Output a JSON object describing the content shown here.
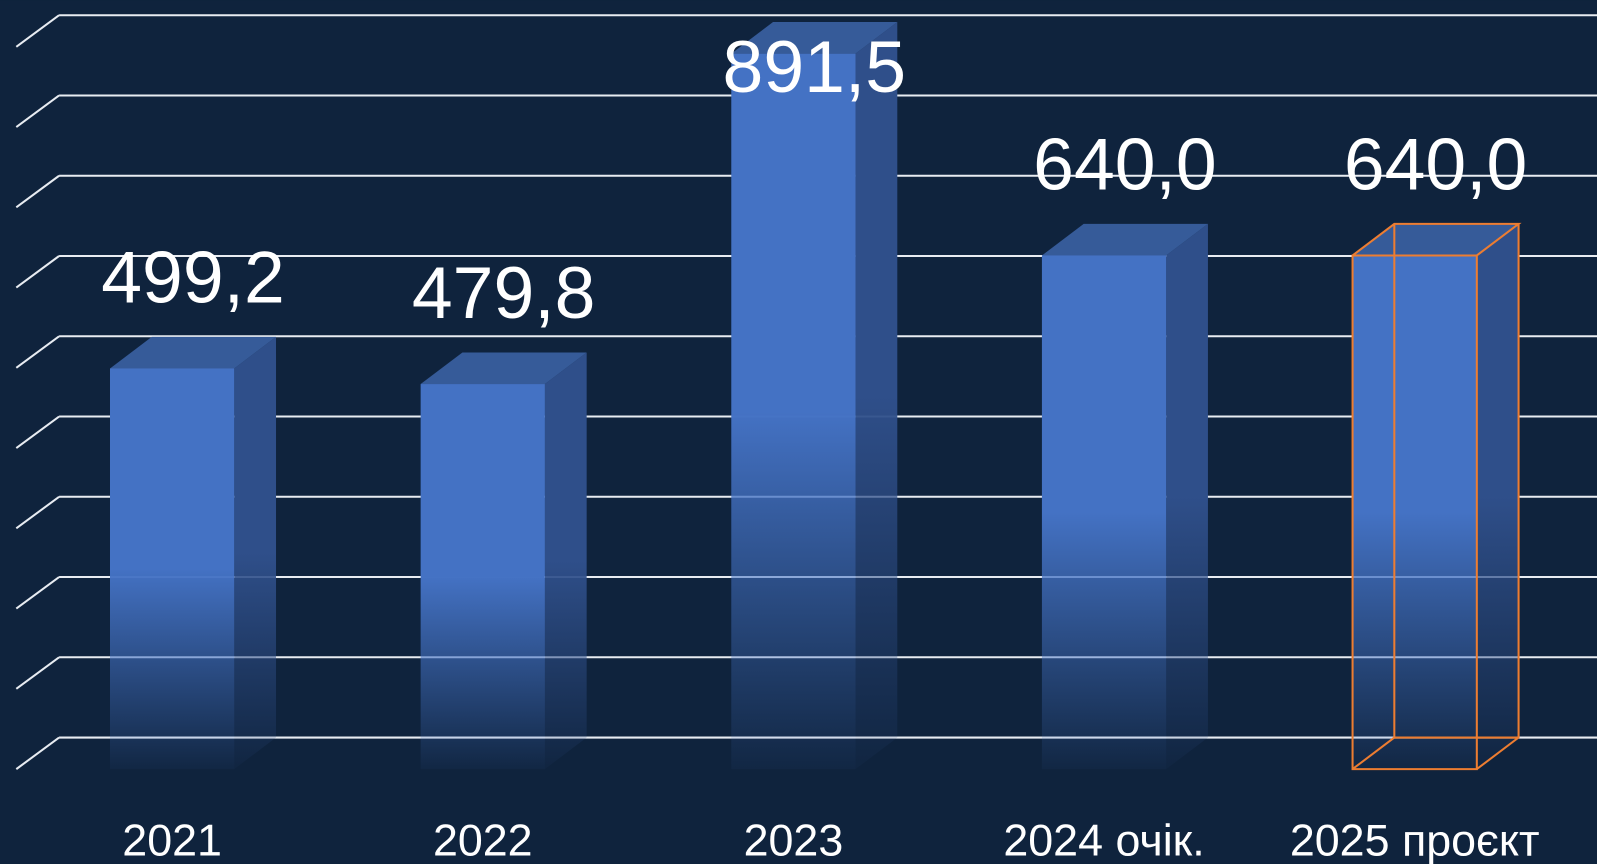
{
  "chart_data": {
    "type": "bar3d",
    "categories": [
      "2021",
      "2022",
      "2023",
      "2024 очік.",
      "2025 проєкт"
    ],
    "values": [
      499.2,
      479.8,
      891.5,
      640.0,
      640.0
    ],
    "value_labels": [
      "499,2",
      "479,8",
      "891,5",
      "640,0",
      "640,0"
    ],
    "color": "#4472c4",
    "edge_colors": [
      null,
      null,
      null,
      null,
      "#ed7d31"
    ],
    "ylim": [
      0,
      900
    ],
    "yticks": [
      0,
      100,
      200,
      300,
      400,
      500,
      600,
      700,
      800,
      900
    ],
    "grid": true
  }
}
